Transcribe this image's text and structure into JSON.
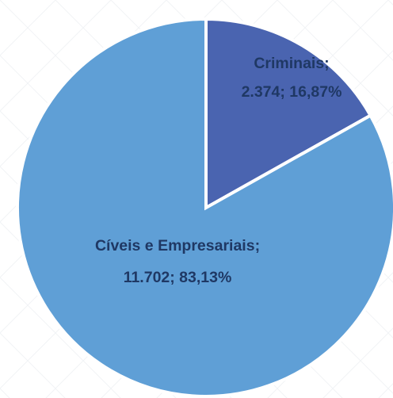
{
  "chart_data": {
    "type": "pie",
    "title": "",
    "slices": [
      {
        "label": "Criminais",
        "value": 2374,
        "value_text": "2.374",
        "percent": 16.87,
        "percent_text": "16,87%",
        "label_lines": [
          "Criminais;",
          "2.374; 16,87%"
        ],
        "color": "#4a64b0"
      },
      {
        "label": "Cíveis e Empresariais",
        "value": 11702,
        "value_text": "11.702",
        "percent": 83.13,
        "percent_text": "83,13%",
        "label_lines": [
          "Cíveis e Empresariais;",
          "11.702; 83,13%"
        ],
        "color": "#5f9fd6"
      }
    ],
    "start_angle_deg": 0,
    "direction": "clockwise",
    "legend": "none"
  }
}
